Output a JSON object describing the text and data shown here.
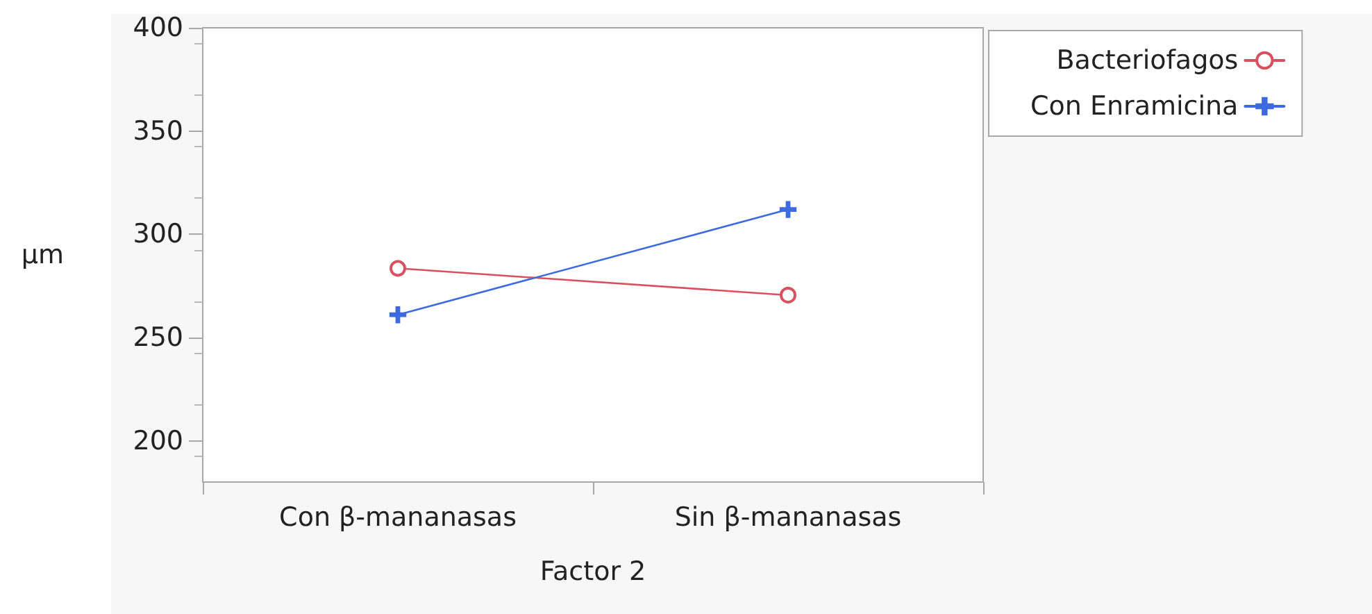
{
  "chart_data": {
    "type": "line",
    "xlabel": "Factor 2",
    "ylabel": "µm",
    "categories": [
      "Con β-mananasas",
      "Sin β-mananasas"
    ],
    "series": [
      {
        "name": "Bacteriofagos",
        "color": "#d9505f",
        "values": [
          283.5,
          270.5
        ],
        "marker": "circle"
      },
      {
        "name": "Con Enramicina",
        "color": "#3e6ae0",
        "values": [
          261,
          312
        ],
        "marker": "cross"
      }
    ],
    "ylim": [
      180,
      400
    ],
    "yticks": [
      200,
      250,
      300,
      350,
      400
    ],
    "grid": false,
    "legend": "top right",
    "line_style": "solid"
  }
}
